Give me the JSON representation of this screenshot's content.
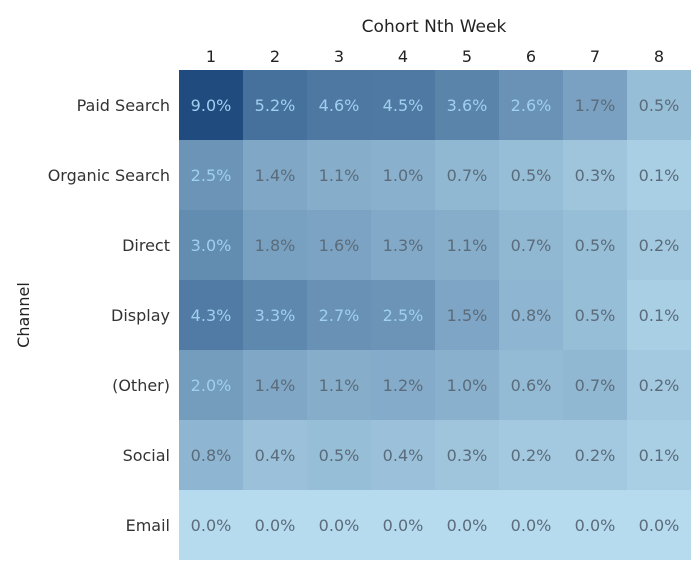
{
  "chart_data": {
    "type": "heatmap",
    "title": "Cohort Nth Week",
    "ylabel": "Channel",
    "columns": [
      "1",
      "2",
      "3",
      "4",
      "5",
      "6",
      "7",
      "8"
    ],
    "rows": [
      "Paid Search",
      "Organic Search",
      "Direct",
      "Display",
      "(Other)",
      "Social",
      "Email"
    ],
    "values": [
      [
        9.0,
        5.2,
        4.6,
        4.5,
        3.6,
        2.6,
        1.7,
        0.5
      ],
      [
        2.5,
        1.4,
        1.1,
        1.0,
        0.7,
        0.5,
        0.3,
        0.1
      ],
      [
        3.0,
        1.8,
        1.6,
        1.3,
        1.1,
        0.7,
        0.5,
        0.2
      ],
      [
        4.3,
        3.3,
        2.7,
        2.5,
        1.5,
        0.8,
        0.5,
        0.1
      ],
      [
        2.0,
        1.4,
        1.1,
        1.2,
        1.0,
        0.6,
        0.7,
        0.2
      ],
      [
        0.8,
        0.4,
        0.5,
        0.4,
        0.3,
        0.2,
        0.2,
        0.1
      ],
      [
        0.0,
        0.0,
        0.0,
        0.0,
        0.0,
        0.0,
        0.0,
        0.0
      ]
    ],
    "labels": [
      [
        "9.0%",
        "5.2%",
        "4.6%",
        "4.5%",
        "3.6%",
        "2.6%",
        "1.7%",
        "0.5%"
      ],
      [
        "2.5%",
        "1.4%",
        "1.1%",
        "1.0%",
        "0.7%",
        "0.5%",
        "0.3%",
        "0.1%"
      ],
      [
        "3.0%",
        "1.8%",
        "1.6%",
        "1.3%",
        "1.1%",
        "0.7%",
        "0.5%",
        "0.2%"
      ],
      [
        "4.3%",
        "3.3%",
        "2.7%",
        "2.5%",
        "1.5%",
        "0.8%",
        "0.5%",
        "0.1%"
      ],
      [
        "2.0%",
        "1.4%",
        "1.1%",
        "1.2%",
        "1.0%",
        "0.6%",
        "0.7%",
        "0.2%"
      ],
      [
        "0.8%",
        "0.4%",
        "0.5%",
        "0.4%",
        "0.3%",
        "0.2%",
        "0.2%",
        "0.1%"
      ],
      [
        "0.0%",
        "0.0%",
        "0.0%",
        "0.0%",
        "0.0%",
        "0.0%",
        "0.0%",
        "0.0%"
      ]
    ],
    "color_scale": {
      "low": "#b6dbee",
      "high": "#1f4b7f",
      "label_light": "#9fd0f0",
      "label_dark": "#5b6b7a"
    }
  }
}
